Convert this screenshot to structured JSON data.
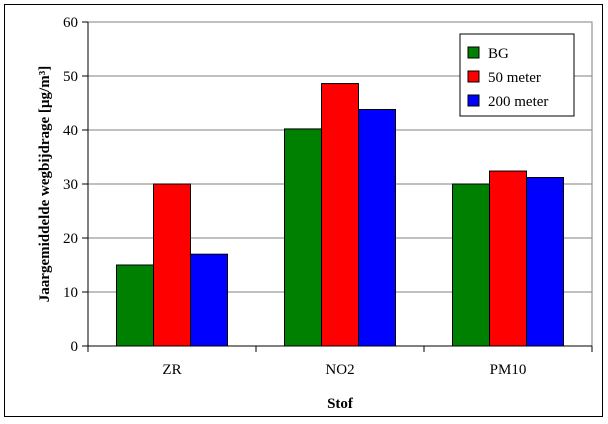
{
  "chart_data": {
    "type": "bar",
    "title": "",
    "xlabel": "Stof",
    "ylabel": "Jaargemiddelde wegbijdrage [µg/m³]",
    "categories": [
      "ZR",
      "NO2",
      "PM10"
    ],
    "series": [
      {
        "name": "BG",
        "values": [
          15,
          40.2,
          30
        ],
        "color": "#008000"
      },
      {
        "name": "50 meter",
        "values": [
          30,
          48.6,
          32.4
        ],
        "color": "#ff0000"
      },
      {
        "name": "200 meter",
        "values": [
          17,
          43.8,
          31.2
        ],
        "color": "#0000ff"
      }
    ],
    "ylim": [
      0,
      60
    ],
    "yticks": [
      0,
      10,
      20,
      30,
      40,
      50,
      60
    ],
    "grid": true,
    "legend_position": "top-right"
  }
}
